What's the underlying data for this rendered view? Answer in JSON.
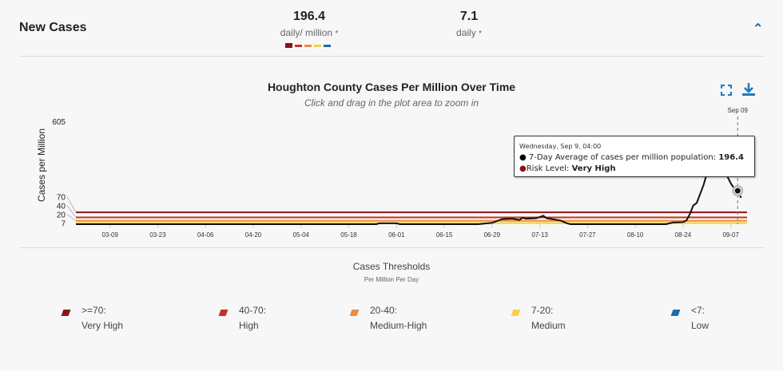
{
  "header": {
    "title": "New Cases",
    "stat1_value": "196.4",
    "stat1_label": "daily/ million",
    "stat2_value": "7.1",
    "stat2_label": "daily",
    "asterisk": "*",
    "collapse_icon": "chevron-up-icon"
  },
  "risk_colors": [
    "#8b1414",
    "#c8321f",
    "#f08a3a",
    "#f8cf46",
    "#1f6aa8"
  ],
  "chart_data": {
    "type": "line",
    "title": "Houghton County Cases Per Million Over Time",
    "subtitle": "Click and drag in the plot area to zoom in",
    "ylabel": "Cases per Million",
    "xlabel": "",
    "ylim": [
      0,
      605
    ],
    "yticks": [
      "605",
      "70",
      "40",
      "20",
      "7"
    ],
    "xticks": [
      "03-09",
      "03-23",
      "04-06",
      "04-20",
      "05-04",
      "05-18",
      "06-01",
      "06-15",
      "06-29",
      "07-13",
      "07-27",
      "08-10",
      "08-24",
      "09-07"
    ],
    "thresholds": [
      {
        "value": 70,
        "color": "#8b1414"
      },
      {
        "value": 40,
        "color": "#c8321f"
      },
      {
        "value": 20,
        "color": "#f08a3a"
      },
      {
        "value": 7,
        "color": "#f8cf46"
      }
    ],
    "series": [
      {
        "name": "7-Day Average of cases per million population",
        "points": [
          [
            "2020-02-28",
            0
          ],
          [
            "2020-05-26",
            0
          ],
          [
            "2020-05-27",
            5
          ],
          [
            "2020-06-01",
            5
          ],
          [
            "2020-06-02",
            0
          ],
          [
            "2020-06-25",
            0
          ],
          [
            "2020-06-29",
            8
          ],
          [
            "2020-07-02",
            30
          ],
          [
            "2020-07-05",
            32
          ],
          [
            "2020-07-07",
            25
          ],
          [
            "2020-07-08",
            38
          ],
          [
            "2020-07-09",
            32
          ],
          [
            "2020-07-12",
            35
          ],
          [
            "2020-07-14",
            50
          ],
          [
            "2020-07-15",
            35
          ],
          [
            "2020-07-19",
            22
          ],
          [
            "2020-07-21",
            5
          ],
          [
            "2020-07-22",
            0
          ],
          [
            "2020-08-19",
            0
          ],
          [
            "2020-08-21",
            10
          ],
          [
            "2020-08-24",
            12
          ],
          [
            "2020-08-25",
            22
          ],
          [
            "2020-08-26",
            60
          ],
          [
            "2020-08-27",
            110
          ],
          [
            "2020-08-28",
            125
          ],
          [
            "2020-08-30",
            230
          ],
          [
            "2020-08-31",
            300
          ],
          [
            "2020-09-02",
            345
          ],
          [
            "2020-09-03",
            350
          ],
          [
            "2020-09-05",
            320
          ],
          [
            "2020-09-07",
            240
          ],
          [
            "2020-09-08",
            210
          ],
          [
            "2020-09-09",
            196.4
          ],
          [
            "2020-09-10",
            155
          ]
        ]
      }
    ],
    "tooltip": {
      "date": "Wednesday, Sep 9, 04:00",
      "series_label": "7-Day Average of cases per million population:",
      "value": "196.4",
      "risk_label": "Risk Level:",
      "risk_value": "Very High"
    },
    "crosshair_label": "Sep 09",
    "legend_title": "Cases Thresholds",
    "legend_subtitle": "Per Million Per Day",
    "legend": [
      {
        "range": ">=70:",
        "level": "Very High",
        "color": "#8b1414"
      },
      {
        "range": "40-70:",
        "level": "High",
        "color": "#c8321f"
      },
      {
        "range": "20-40:",
        "level": "Medium-High",
        "color": "#f08a3a"
      },
      {
        "range": "7-20:",
        "level": "Medium",
        "color": "#f8cf46"
      },
      {
        "range": "<7:",
        "level": "Low",
        "color": "#1f6aa8"
      }
    ]
  },
  "toolbar": {
    "fullscreen_icon": "fullscreen-icon",
    "download_icon": "download-icon"
  }
}
